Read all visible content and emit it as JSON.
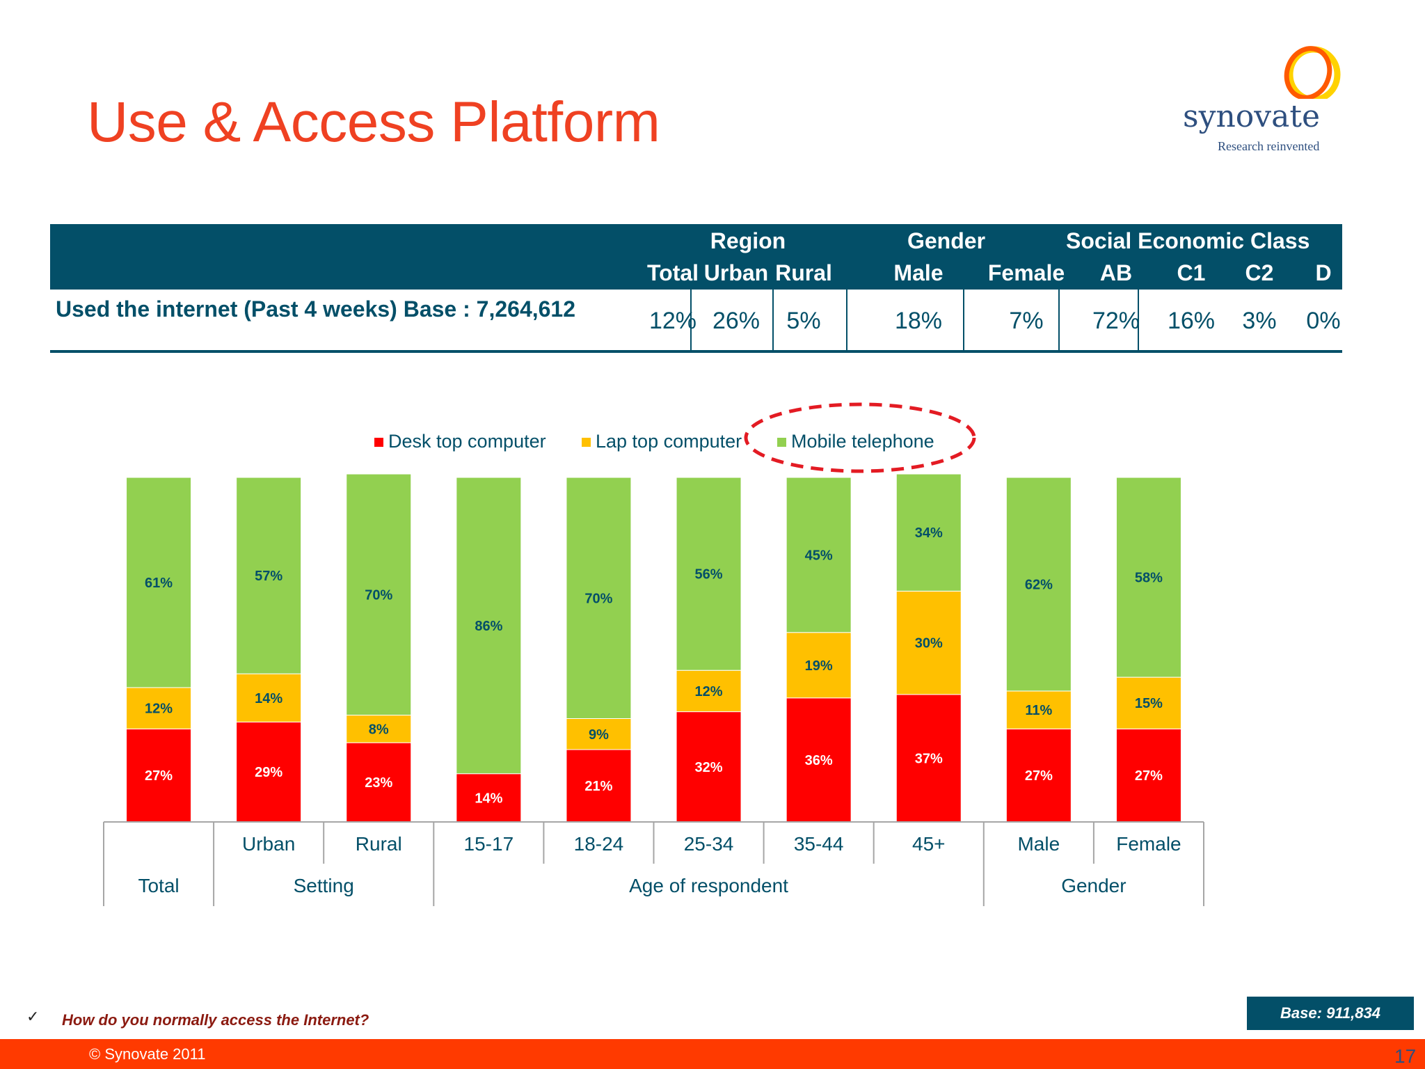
{
  "slide": {
    "title": "Use & Access Platform",
    "logo": {
      "name": "synovate",
      "tagline": "Research reinvented"
    },
    "question": "How do you normally access the Internet?",
    "check_icon": "checkmark-icon",
    "base": "Base: 911,834",
    "copyright": "© Synovate 2011",
    "page_number": "17",
    "colors": {
      "title": "#ef4122",
      "table_header": "#034f68",
      "footer": "#ff3a00",
      "desktop": "#ff0000",
      "laptop": "#ffc000",
      "mobile": "#92d050",
      "highlight": "#e31b23"
    }
  },
  "stats_table": {
    "group_headers": [
      "Region",
      "Gender",
      "Social Economic Class"
    ],
    "columns": [
      "Total",
      "Urban",
      "Rural",
      "Male",
      "Female",
      "AB",
      "C1",
      "C2",
      "D"
    ],
    "row_label": "Used the internet (Past 4 weeks)  Base : 7,264,612",
    "values": [
      "12%",
      "26%",
      "5%",
      "18%",
      "7%",
      "72%",
      "16%",
      "3%",
      "0%"
    ]
  },
  "chart_data": {
    "type": "bar",
    "stacked": true,
    "percent": true,
    "title": "",
    "xlabel": "",
    "ylabel": "",
    "ylim": [
      0,
      100
    ],
    "categories": [
      "Total",
      "Urban",
      "Rural",
      "15-17",
      "18-24",
      "25-34",
      "35-44",
      "45+",
      "Male",
      "Female"
    ],
    "category_groups": [
      {
        "label": "Total",
        "span": 1
      },
      {
        "label": "Setting",
        "span": 2
      },
      {
        "label": "Age of respondent",
        "span": 5
      },
      {
        "label": "Gender",
        "span": 2
      }
    ],
    "category_labels": [
      "",
      "Urban",
      "Rural",
      "15-17",
      "18-24",
      "25-34",
      "35-44",
      "45+",
      "Male",
      "Female"
    ],
    "series": [
      {
        "name": "Desk top computer",
        "color": "#ff0000",
        "label_color": "#ffffff",
        "values": [
          27,
          29,
          23,
          14,
          21,
          32,
          36,
          37,
          27,
          27
        ]
      },
      {
        "name": "Lap top computer",
        "color": "#ffc000",
        "label_color": "#034f68",
        "values": [
          12,
          14,
          8,
          0,
          9,
          12,
          19,
          30,
          11,
          15
        ]
      },
      {
        "name": "Mobile telephone",
        "color": "#92d050",
        "label_color": "#034f68",
        "values": [
          61,
          57,
          70,
          86,
          70,
          56,
          45,
          34,
          62,
          58
        ]
      }
    ],
    "legend_position": "top",
    "highlighted_series": "Mobile telephone",
    "grid": false
  }
}
